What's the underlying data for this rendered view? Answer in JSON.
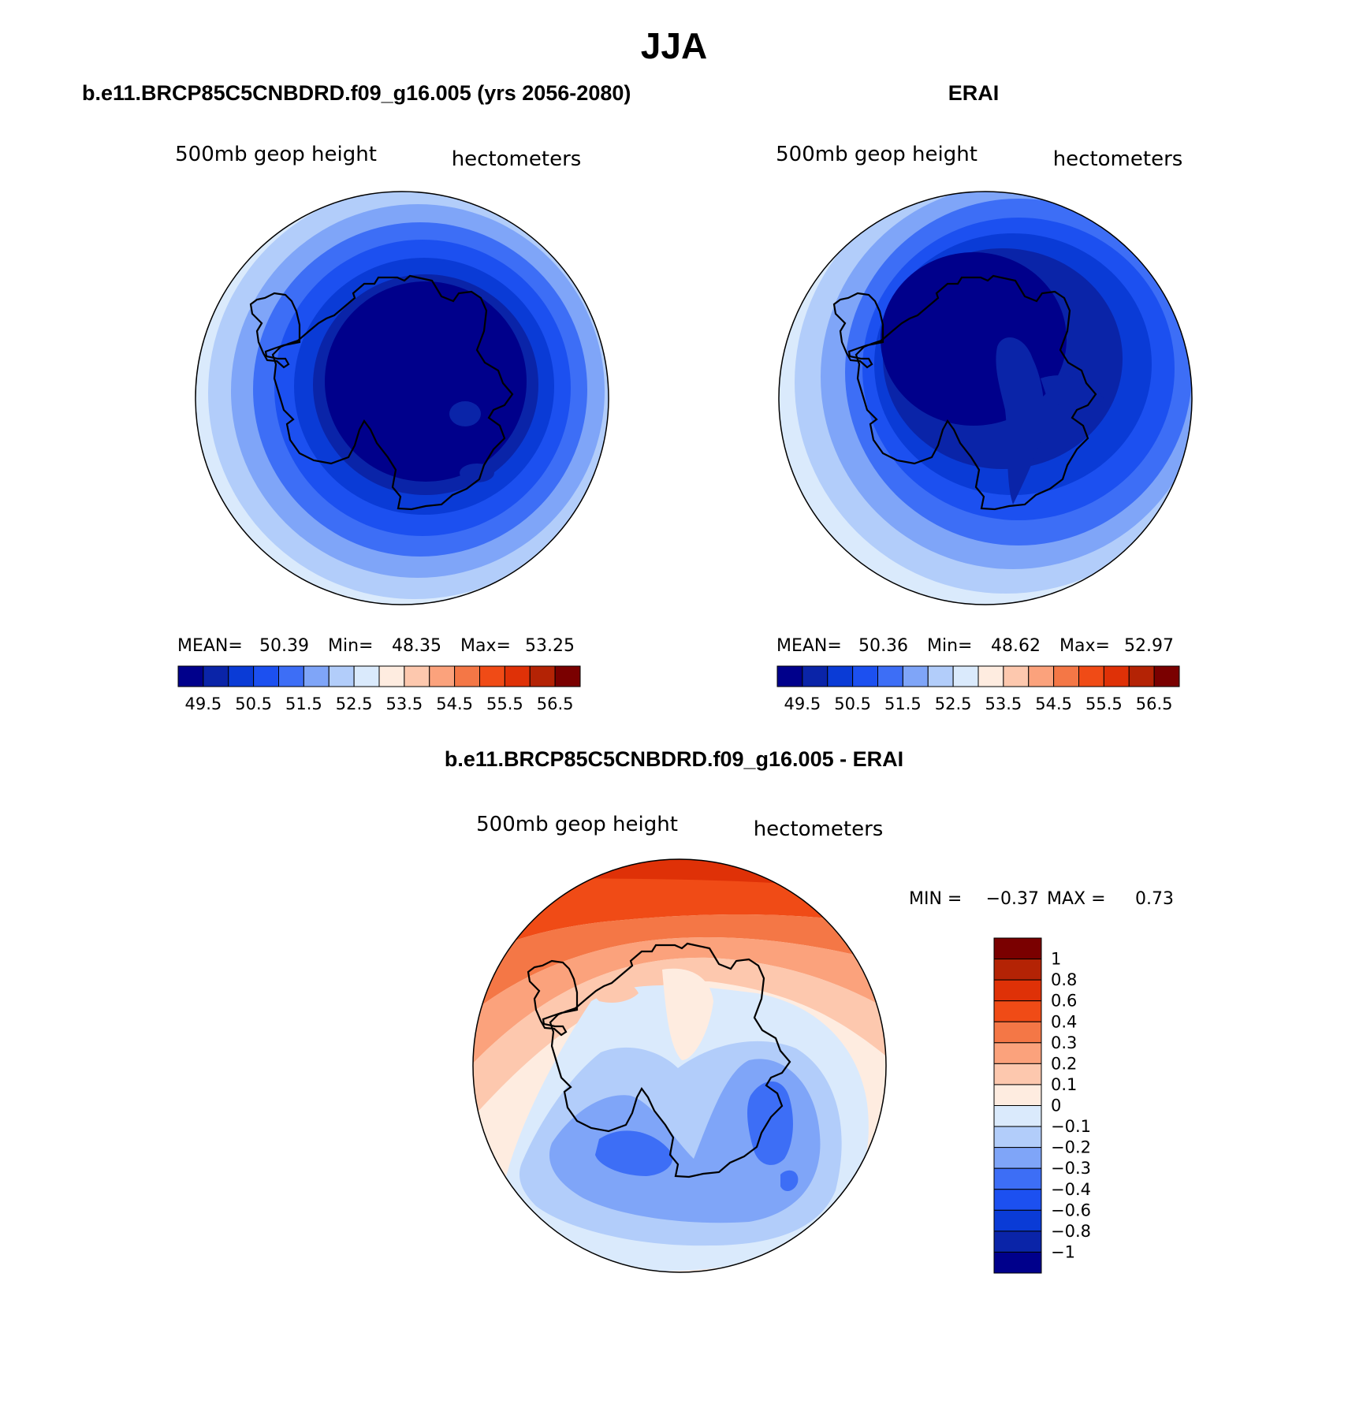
{
  "figure": {
    "season": "JJA",
    "left_title": "b.e11.BRCP85C5CNBDRD.f09_g16.005 (yrs 2056-2080)",
    "right_title": "ERAI",
    "diff_title": "b.e11.BRCP85C5CNBDRD.f09_g16.005 - ERAI"
  },
  "panels": {
    "model": {
      "variable": "500mb geop height",
      "units": "hectometers",
      "mean_label": "MEAN=",
      "mean": "50.39",
      "min_label": "Min=",
      "min": "48.35",
      "max_label": "Max=",
      "max": "53.25"
    },
    "obs": {
      "variable": "500mb geop height",
      "units": "hectometers",
      "mean_label": "MEAN=",
      "mean": "50.36",
      "min_label": "Min=",
      "min": "48.62",
      "max_label": "Max=",
      "max": "52.97"
    },
    "diff": {
      "variable": "500mb geop height",
      "units": "hectometers",
      "min_label": "MIN =",
      "min": "−0.37",
      "max_label": "MAX =",
      "max": "0.73"
    }
  },
  "colorbars": {
    "abs": {
      "colors": [
        "#00008b",
        "#0a24a8",
        "#0a3bd6",
        "#1c50f0",
        "#3d6ef6",
        "#7fa5f8",
        "#b2cdfa",
        "#daeafc",
        "#feece0",
        "#fdc8ae",
        "#fba27c",
        "#f47746",
        "#f04b16",
        "#df3107",
        "#b42305",
        "#7a0000"
      ],
      "labels": [
        "49.5",
        "50.5",
        "51.5",
        "52.5",
        "53.5",
        "54.5",
        "55.5",
        "56.5"
      ]
    },
    "diff": {
      "colors": [
        "#7a0000",
        "#b42305",
        "#df3107",
        "#f04b16",
        "#f47746",
        "#fba27c",
        "#fdc8ae",
        "#feece0",
        "#daeafc",
        "#b2cdfa",
        "#7fa5f8",
        "#3d6ef6",
        "#1c50f0",
        "#0a3bd6",
        "#0a24a8",
        "#00008b"
      ],
      "labels": [
        "1",
        "0.8",
        "0.6",
        "0.4",
        "0.3",
        "0.2",
        "0.1",
        "0",
        "−0.1",
        "−0.2",
        "−0.3",
        "−0.4",
        "−0.6",
        "−0.8",
        "−1"
      ]
    }
  }
}
